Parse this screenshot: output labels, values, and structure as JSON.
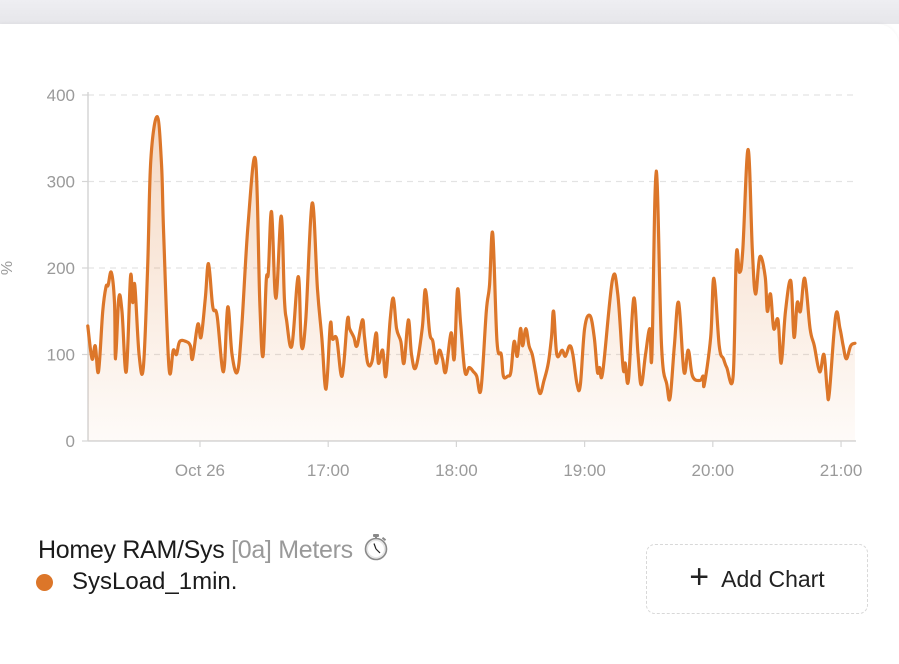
{
  "colors": {
    "series": "#dc7629",
    "grid": "#e3e3e3",
    "axis": "#d5d5d5",
    "tick_text": "#9a9a9a"
  },
  "legend_block": {
    "title": "Homey RAM/Sys",
    "subtitle": "[0a] Meters",
    "icon": "stopwatch-icon",
    "series_label": "SysLoad_1min."
  },
  "add_chart": {
    "icon": "plus-icon",
    "label": "Add Chart"
  },
  "chart_data": {
    "type": "area",
    "title": "",
    "xlabel": "",
    "ylabel": "%",
    "ylim": [
      0,
      400
    ],
    "yticks": [
      "0",
      "100",
      "200",
      "300",
      "400"
    ],
    "xlim": [
      "15:07:36",
      "21:07:00"
    ],
    "xticks": [
      {
        "t": "16:00:00",
        "label": "Oct 26"
      },
      {
        "t": "17:00:00",
        "label": "17:00"
      },
      {
        "t": "18:00:00",
        "label": "18:00"
      },
      {
        "t": "19:00:00",
        "label": "19:00"
      },
      {
        "t": "20:00:00",
        "label": "20:00"
      },
      {
        "t": "21:00:00",
        "label": "21:00"
      }
    ],
    "grid": true,
    "legend": "bottom-left",
    "series": [
      {
        "name": "SysLoad_1min.",
        "points": [
          [
            "15:07:30",
            133
          ],
          [
            "15:09:30",
            95
          ],
          [
            "15:11:00",
            110
          ],
          [
            "15:12:30",
            80
          ],
          [
            "15:14:30",
            150
          ],
          [
            "15:16:00",
            178
          ],
          [
            "15:17:00",
            180
          ],
          [
            "15:18:30",
            195
          ],
          [
            "15:20:00",
            160
          ],
          [
            "15:20:30",
            95
          ],
          [
            "15:22:00",
            165
          ],
          [
            "15:23:30",
            150
          ],
          [
            "15:25:30",
            80
          ],
          [
            "15:27:30",
            190
          ],
          [
            "15:28:30",
            160
          ],
          [
            "15:29:30",
            180
          ],
          [
            "15:31:30",
            100
          ],
          [
            "15:33:30",
            85
          ],
          [
            "15:35:30",
            200
          ],
          [
            "15:37:00",
            325
          ],
          [
            "15:40:00",
            375
          ],
          [
            "15:42:00",
            320
          ],
          [
            "15:43:00",
            240
          ],
          [
            "15:45:30",
            85
          ],
          [
            "15:47:30",
            105
          ],
          [
            "15:49:00",
            100
          ],
          [
            "15:50:30",
            115
          ],
          [
            "15:53:30",
            115
          ],
          [
            "15:55:30",
            110
          ],
          [
            "15:56:30",
            95
          ],
          [
            "15:59:00",
            135
          ],
          [
            "16:00:30",
            120
          ],
          [
            "16:02:30",
            165
          ],
          [
            "16:04:00",
            205
          ],
          [
            "16:06:00",
            155
          ],
          [
            "16:08:00",
            145
          ],
          [
            "16:11:00",
            80
          ],
          [
            "16:13:00",
            155
          ],
          [
            "16:15:00",
            100
          ],
          [
            "16:17:30",
            80
          ],
          [
            "16:19:30",
            130
          ],
          [
            "16:22:30",
            250
          ],
          [
            "16:26:00",
            325
          ],
          [
            "16:28:00",
            160
          ],
          [
            "16:29:30",
            98
          ],
          [
            "16:31:00",
            185
          ],
          [
            "16:32:00",
            195
          ],
          [
            "16:33:30",
            265
          ],
          [
            "16:35:30",
            165
          ],
          [
            "16:38:00",
            260
          ],
          [
            "16:39:30",
            165
          ],
          [
            "16:40:30",
            140
          ],
          [
            "16:43:00",
            110
          ],
          [
            "16:46:00",
            190
          ],
          [
            "16:47:30",
            110
          ],
          [
            "16:49:30",
            140
          ],
          [
            "16:52:30",
            275
          ],
          [
            "16:55:00",
            175
          ],
          [
            "16:57:00",
            120
          ],
          [
            "16:59:00",
            60
          ],
          [
            "17:01:00",
            135
          ],
          [
            "17:02:00",
            118
          ],
          [
            "17:04:00",
            118
          ],
          [
            "17:06:30",
            75
          ],
          [
            "17:09:00",
            140
          ],
          [
            "17:10:00",
            130
          ],
          [
            "17:12:00",
            120
          ],
          [
            "17:13:30",
            110
          ],
          [
            "17:16:00",
            140
          ],
          [
            "17:17:00",
            120
          ],
          [
            "17:18:30",
            90
          ],
          [
            "17:20:30",
            92
          ],
          [
            "17:22:30",
            125
          ],
          [
            "17:23:30",
            90
          ],
          [
            "17:25:30",
            105
          ],
          [
            "17:27:00",
            75
          ],
          [
            "17:29:00",
            140
          ],
          [
            "17:30:30",
            165
          ],
          [
            "17:32:00",
            130
          ],
          [
            "17:34:00",
            115
          ],
          [
            "17:35:30",
            90
          ],
          [
            "17:37:30",
            140
          ],
          [
            "17:39:00",
            100
          ],
          [
            "17:41:00",
            85
          ],
          [
            "17:44:00",
            130
          ],
          [
            "17:45:30",
            175
          ],
          [
            "17:47:30",
            125
          ],
          [
            "17:49:00",
            115
          ],
          [
            "17:50:30",
            90
          ],
          [
            "17:52:00",
            105
          ],
          [
            "17:53:30",
            95
          ],
          [
            "17:55:00",
            80
          ],
          [
            "17:57:30",
            125
          ],
          [
            "17:59:00",
            95
          ],
          [
            "18:00:30",
            175
          ],
          [
            "18:02:00",
            135
          ],
          [
            "18:04:00",
            80
          ],
          [
            "18:06:00",
            85
          ],
          [
            "18:08:00",
            80
          ],
          [
            "18:09:30",
            75
          ],
          [
            "18:11:30",
            60
          ],
          [
            "18:14:00",
            150
          ],
          [
            "18:15:30",
            180
          ],
          [
            "18:17:00",
            240
          ],
          [
            "18:19:00",
            115
          ],
          [
            "18:21:00",
            100
          ],
          [
            "18:22:00",
            75
          ],
          [
            "18:24:00",
            75
          ],
          [
            "18:25:30",
            80
          ],
          [
            "18:27:00",
            115
          ],
          [
            "18:28:30",
            98
          ],
          [
            "18:30:00",
            130
          ],
          [
            "18:31:00",
            110
          ],
          [
            "18:32:30",
            130
          ],
          [
            "18:34:00",
            110
          ],
          [
            "18:35:30",
            100
          ],
          [
            "18:37:00",
            80
          ],
          [
            "18:39:00",
            55
          ],
          [
            "18:41:00",
            70
          ],
          [
            "18:43:00",
            90
          ],
          [
            "18:44:30",
            120
          ],
          [
            "18:45:30",
            150
          ],
          [
            "18:47:00",
            100
          ],
          [
            "18:49:30",
            105
          ],
          [
            "18:51:00",
            98
          ],
          [
            "18:53:00",
            110
          ],
          [
            "18:54:30",
            100
          ],
          [
            "18:56:30",
            65
          ],
          [
            "18:58:00",
            65
          ],
          [
            "19:00:00",
            130
          ],
          [
            "19:02:30",
            145
          ],
          [
            "19:04:30",
            120
          ],
          [
            "19:06:00",
            80
          ],
          [
            "19:07:00",
            85
          ],
          [
            "19:08:30",
            80
          ],
          [
            "19:13:00",
            186
          ],
          [
            "19:15:30",
            170
          ],
          [
            "19:18:00",
            85
          ],
          [
            "19:19:00",
            90
          ],
          [
            "19:20:30",
            70
          ],
          [
            "19:23:00",
            165
          ],
          [
            "19:25:00",
            100
          ],
          [
            "19:26:30",
            65
          ],
          [
            "19:28:30",
            100
          ],
          [
            "19:30:30",
            130
          ],
          [
            "19:31:30",
            100
          ],
          [
            "19:33:30",
            312
          ],
          [
            "19:36:00",
            110
          ],
          [
            "19:38:30",
            65
          ],
          [
            "19:40:00",
            50
          ],
          [
            "19:42:00",
            110
          ],
          [
            "19:44:00",
            160
          ],
          [
            "19:46:30",
            80
          ],
          [
            "19:48:30",
            105
          ],
          [
            "19:50:30",
            75
          ],
          [
            "19:54:00",
            70
          ],
          [
            "19:55:30",
            75
          ],
          [
            "19:56:00",
            65
          ],
          [
            "19:59:00",
            120
          ],
          [
            "20:00:30",
            188
          ],
          [
            "20:03:00",
            110
          ],
          [
            "20:05:00",
            95
          ],
          [
            "20:06:30",
            85
          ],
          [
            "20:09:30",
            75
          ],
          [
            "20:11:00",
            215
          ],
          [
            "20:12:30",
            195
          ],
          [
            "20:14:00",
            220
          ],
          [
            "20:16:30",
            337
          ],
          [
            "20:18:30",
            220
          ],
          [
            "20:20:00",
            170
          ],
          [
            "20:22:00",
            213
          ],
          [
            "20:24:30",
            190
          ],
          [
            "20:25:30",
            150
          ],
          [
            "20:27:00",
            170
          ],
          [
            "20:28:30",
            130
          ],
          [
            "20:30:30",
            140
          ],
          [
            "20:32:00",
            90
          ],
          [
            "20:34:00",
            150
          ],
          [
            "20:36:30",
            185
          ],
          [
            "20:38:00",
            120
          ],
          [
            "20:39:30",
            160
          ],
          [
            "20:41:00",
            150
          ],
          [
            "20:43:00",
            188
          ],
          [
            "20:45:30",
            130
          ],
          [
            "20:47:30",
            110
          ],
          [
            "20:50:00",
            80
          ],
          [
            "20:52:00",
            100
          ],
          [
            "20:53:30",
            60
          ],
          [
            "20:54:30",
            55
          ],
          [
            "20:57:30",
            145
          ],
          [
            "20:59:30",
            130
          ],
          [
            "21:01:00",
            110
          ],
          [
            "21:02:30",
            95
          ],
          [
            "21:04:30",
            110
          ],
          [
            "21:06:30",
            113
          ]
        ]
      }
    ]
  }
}
